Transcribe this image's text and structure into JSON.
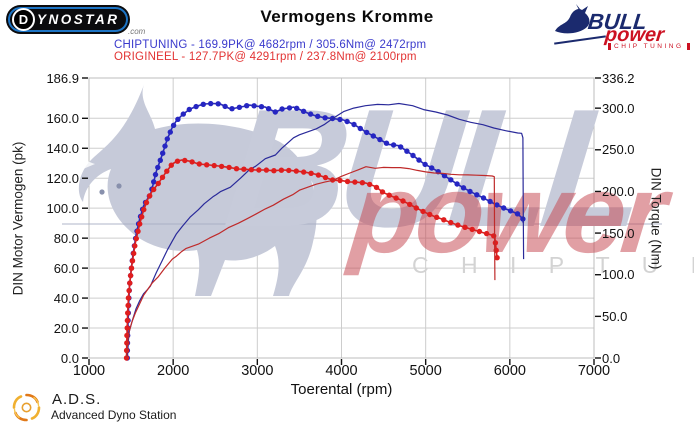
{
  "header": {
    "title": "Vermogens Kromme",
    "dynostar": {
      "circle_letter": "D",
      "word": "YNOSTAR",
      "suffix": ".com"
    },
    "bullpower": {
      "word1": "BULL",
      "word2": "power",
      "tagline": "CHIP TUNING"
    }
  },
  "legend": {
    "entries": [
      {
        "name": "chiptuning",
        "color": "#3a3acc",
        "text": "CHIPTUNING  - 169.9PK@ 4682rpm / 305.6Nm@ 2472rpm"
      },
      {
        "name": "origineel",
        "color": "#e23333",
        "text": "ORIGINEEL  - 127.7PK@ 4291rpm / 237.8Nm@ 2100rpm"
      }
    ]
  },
  "watermark": {
    "word1": "BULL",
    "word2": "power",
    "tagline": "C H I P  T U N I N G"
  },
  "footer": {
    "abbr": "A.D.S.",
    "name": "Advanced Dyno Station"
  },
  "chart_data": {
    "type": "line",
    "title": "Vermogens Kromme",
    "xlabel": "Toerental (rpm)",
    "ylabel_left": "DIN Motor Vermogen (pk)",
    "ylabel_right": "DIN Torque (Nm)",
    "x_range": [
      1000,
      7000
    ],
    "power_axis_max": 186.9,
    "torque_axis_max": 336.2,
    "grid": "horizontal-at-power-ticks-and-vertical-at-rpm-ticks",
    "x_ticks": [
      {
        "v": 1000,
        "label": "1000"
      },
      {
        "v": 2000,
        "label": "2000"
      },
      {
        "v": 3000,
        "label": "3000"
      },
      {
        "v": 4000,
        "label": "4000"
      },
      {
        "v": 5000,
        "label": "5000"
      },
      {
        "v": 6000,
        "label": "6000"
      },
      {
        "v": 7000,
        "label": "7000"
      }
    ],
    "power_ticks": [
      {
        "v": 186.9,
        "label": "186.9"
      },
      {
        "v": 160,
        "label": "160.0"
      },
      {
        "v": 140,
        "label": "140.0"
      },
      {
        "v": 120,
        "label": "120.0"
      },
      {
        "v": 100,
        "label": "100.0"
      },
      {
        "v": 80,
        "label": "80.0"
      },
      {
        "v": 60,
        "label": "60.0"
      },
      {
        "v": 40,
        "label": "40.0"
      },
      {
        "v": 20,
        "label": "20.0"
      },
      {
        "v": 0,
        "label": "0.0"
      }
    ],
    "torque_ticks": [
      {
        "v": 336.2,
        "label": "336.2"
      },
      {
        "v": 300,
        "label": "300.0"
      },
      {
        "v": 250,
        "label": "250.0"
      },
      {
        "v": 200,
        "label": "200.0"
      },
      {
        "v": 150,
        "label": "150.0"
      },
      {
        "v": 100,
        "label": "100.0"
      },
      {
        "v": 50,
        "label": "50.0"
      },
      {
        "v": 0,
        "label": "0.0"
      }
    ],
    "peaks": {
      "chiptuning": {
        "power_pk": 169.9,
        "power_rpm": 4682,
        "torque_nm": 305.6,
        "torque_rpm": 2472
      },
      "origineel": {
        "power_pk": 127.7,
        "power_rpm": 4291,
        "torque_nm": 237.8,
        "torque_rpm": 2100
      }
    },
    "series": [
      {
        "name": "chiptuning-torque",
        "axis": "torque",
        "style": "markers",
        "color": "#2626c2",
        "line_color": "#2a2ab4",
        "points": [
          [
            1455,
            0
          ],
          [
            1460,
            30
          ],
          [
            1470,
            62
          ],
          [
            1480,
            85
          ],
          [
            1500,
            105
          ],
          [
            1520,
            122
          ],
          [
            1560,
            148
          ],
          [
            1600,
            166
          ],
          [
            1650,
            183
          ],
          [
            1700,
            192
          ],
          [
            1730,
            196
          ],
          [
            1760,
            208
          ],
          [
            1800,
            224
          ],
          [
            1870,
            244
          ],
          [
            1930,
            263
          ],
          [
            1990,
            277
          ],
          [
            2040,
            285
          ],
          [
            2110,
            292
          ],
          [
            2200,
            299
          ],
          [
            2300,
            303
          ],
          [
            2370,
            305
          ],
          [
            2472,
            305.6
          ],
          [
            2510,
            305.4
          ],
          [
            2560,
            305
          ],
          [
            2680,
            299
          ],
          [
            2800,
            301.3
          ],
          [
            2905,
            303.7
          ],
          [
            2980,
            302.5
          ],
          [
            3095,
            301.3
          ],
          [
            3215,
            295.3
          ],
          [
            3290,
            298.9
          ],
          [
            3370,
            300.1
          ],
          [
            3430,
            301.3
          ],
          [
            3500,
            298.5
          ],
          [
            3600,
            294
          ],
          [
            3700,
            290.5
          ],
          [
            3800,
            288.5
          ],
          [
            3900,
            287.5
          ],
          [
            4025,
            285.8
          ],
          [
            4145,
            280.6
          ],
          [
            4285,
            271.7
          ],
          [
            4430,
            263.7
          ],
          [
            4560,
            256.5
          ],
          [
            4682,
            254.9
          ],
          [
            4845,
            243.5
          ],
          [
            4975,
            233.5
          ],
          [
            5120,
            225.5
          ],
          [
            5260,
            216.5
          ],
          [
            5395,
            207.5
          ],
          [
            5535,
            199.5
          ],
          [
            5680,
            192.5
          ],
          [
            5810,
            185.5
          ],
          [
            5950,
            179
          ],
          [
            6095,
            173
          ],
          [
            6155,
            167
          ],
          [
            6160,
            162
          ]
        ]
      },
      {
        "name": "chiptuning-power",
        "axis": "power",
        "style": "line",
        "color": "#2a2a9a",
        "line_color": "#2a2a9a",
        "points": [
          [
            1455,
            0
          ],
          [
            1462,
            6
          ],
          [
            1470,
            13
          ],
          [
            1480,
            18
          ],
          [
            1500,
            22
          ],
          [
            1520,
            26
          ],
          [
            1560,
            33
          ],
          [
            1600,
            38
          ],
          [
            1650,
            43
          ],
          [
            1700,
            46
          ],
          [
            1730,
            48
          ],
          [
            1760,
            52
          ],
          [
            1800,
            57
          ],
          [
            1870,
            65
          ],
          [
            1930,
            72
          ],
          [
            1990,
            78
          ],
          [
            2040,
            83
          ],
          [
            2110,
            88
          ],
          [
            2200,
            94
          ],
          [
            2300,
            99
          ],
          [
            2370,
            103
          ],
          [
            2472,
            107.6
          ],
          [
            2510,
            109
          ],
          [
            2560,
            111
          ],
          [
            2680,
            114
          ],
          [
            2800,
            120
          ],
          [
            2905,
            125.6
          ],
          [
            2980,
            128
          ],
          [
            3095,
            133
          ],
          [
            3215,
            135.5
          ],
          [
            3290,
            140
          ],
          [
            3370,
            144
          ],
          [
            3430,
            147
          ],
          [
            3500,
            149
          ],
          [
            3600,
            151
          ],
          [
            3700,
            153
          ],
          [
            3800,
            156
          ],
          [
            3900,
            160
          ],
          [
            4025,
            164.5
          ],
          [
            4145,
            166.8
          ],
          [
            4285,
            168.4
          ],
          [
            4430,
            169.3
          ],
          [
            4560,
            169
          ],
          [
            4682,
            169.9
          ],
          [
            4845,
            168.4
          ],
          [
            4975,
            165.8
          ],
          [
            5120,
            164.2
          ],
          [
            5260,
            162.2
          ],
          [
            5395,
            159.4
          ],
          [
            5535,
            157.3
          ],
          [
            5680,
            155.7
          ],
          [
            5810,
            153.5
          ],
          [
            5950,
            151.7
          ],
          [
            6095,
            150.2
          ],
          [
            6140,
            150
          ],
          [
            6155,
            147
          ],
          [
            6158,
            120
          ],
          [
            6160,
            95
          ],
          [
            6163,
            66
          ]
        ]
      },
      {
        "name": "origineel-torque",
        "axis": "torque",
        "style": "markers",
        "color": "#e01e1e",
        "line_color": "#d42222",
        "points": [
          [
            1445,
            0
          ],
          [
            1450,
            25
          ],
          [
            1460,
            55
          ],
          [
            1470,
            75
          ],
          [
            1490,
            95
          ],
          [
            1510,
            112
          ],
          [
            1550,
            138
          ],
          [
            1600,
            160
          ],
          [
            1650,
            178
          ],
          [
            1700,
            191
          ],
          [
            1750,
            200
          ],
          [
            1820,
            209
          ],
          [
            1900,
            221
          ],
          [
            1990,
            233
          ],
          [
            2040,
            236
          ],
          [
            2100,
            237.8
          ],
          [
            2150,
            237
          ],
          [
            2200,
            236.3
          ],
          [
            2300,
            233
          ],
          [
            2430,
            231.7
          ],
          [
            2540,
            230.5
          ],
          [
            2655,
            229
          ],
          [
            2775,
            226.9
          ],
          [
            2880,
            226.5
          ],
          [
            2980,
            225.7
          ],
          [
            3095,
            225.7
          ],
          [
            3190,
            224.9
          ],
          [
            3310,
            225.7
          ],
          [
            3420,
            224.9
          ],
          [
            3500,
            224
          ],
          [
            3600,
            222.5
          ],
          [
            3700,
            220.5
          ],
          [
            3800,
            217
          ],
          [
            3900,
            213.5
          ],
          [
            4000,
            213
          ],
          [
            4100,
            211.5
          ],
          [
            4200,
            211
          ],
          [
            4291,
            210
          ],
          [
            4400,
            206
          ],
          [
            4500,
            198.5
          ],
          [
            4600,
            194
          ],
          [
            4700,
            190
          ],
          [
            4800,
            185
          ],
          [
            4900,
            179.5
          ],
          [
            5000,
            174.5
          ],
          [
            5100,
            170
          ],
          [
            5200,
            166.5
          ],
          [
            5300,
            162.5
          ],
          [
            5400,
            159
          ],
          [
            5500,
            156
          ],
          [
            5600,
            153
          ],
          [
            5700,
            150
          ],
          [
            5790,
            147.5
          ],
          [
            5820,
            146
          ],
          [
            5850,
            119
          ]
        ]
      },
      {
        "name": "origineel-power",
        "axis": "power",
        "style": "line",
        "color": "#bf2a2a",
        "line_color": "#bf2a2a",
        "points": [
          [
            1445,
            0
          ],
          [
            1452,
            5
          ],
          [
            1460,
            11
          ],
          [
            1470,
            16
          ],
          [
            1490,
            20
          ],
          [
            1510,
            24
          ],
          [
            1550,
            30
          ],
          [
            1600,
            36
          ],
          [
            1650,
            42
          ],
          [
            1700,
            46
          ],
          [
            1750,
            50
          ],
          [
            1820,
            54
          ],
          [
            1900,
            60
          ],
          [
            1990,
            66
          ],
          [
            2040,
            68
          ],
          [
            2100,
            71
          ],
          [
            2150,
            73
          ],
          [
            2200,
            74
          ],
          [
            2300,
            76
          ],
          [
            2430,
            80
          ],
          [
            2540,
            83
          ],
          [
            2655,
            87
          ],
          [
            2775,
            90
          ],
          [
            2880,
            93
          ],
          [
            2980,
            96
          ],
          [
            3095,
            99.5
          ],
          [
            3190,
            102
          ],
          [
            3310,
            106
          ],
          [
            3420,
            109
          ],
          [
            3500,
            112
          ],
          [
            3600,
            114
          ],
          [
            3700,
            116
          ],
          [
            3800,
            117.4
          ],
          [
            3900,
            118.6
          ],
          [
            4000,
            121.3
          ],
          [
            4100,
            123.5
          ],
          [
            4200,
            125.6
          ],
          [
            4291,
            127.7
          ],
          [
            4400,
            126.6
          ],
          [
            4500,
            127.2
          ],
          [
            4600,
            127.1
          ],
          [
            4700,
            127.1
          ],
          [
            4800,
            126.4
          ],
          [
            4900,
            125.2
          ],
          [
            5000,
            124.2
          ],
          [
            5100,
            123.5
          ],
          [
            5200,
            123.3
          ],
          [
            5300,
            122.6
          ],
          [
            5400,
            122.3
          ],
          [
            5500,
            122.2
          ],
          [
            5600,
            122
          ],
          [
            5700,
            121.8
          ],
          [
            5790,
            121.5
          ],
          [
            5815,
            121
          ],
          [
            5818,
            90
          ],
          [
            5822,
            52
          ]
        ]
      }
    ]
  }
}
